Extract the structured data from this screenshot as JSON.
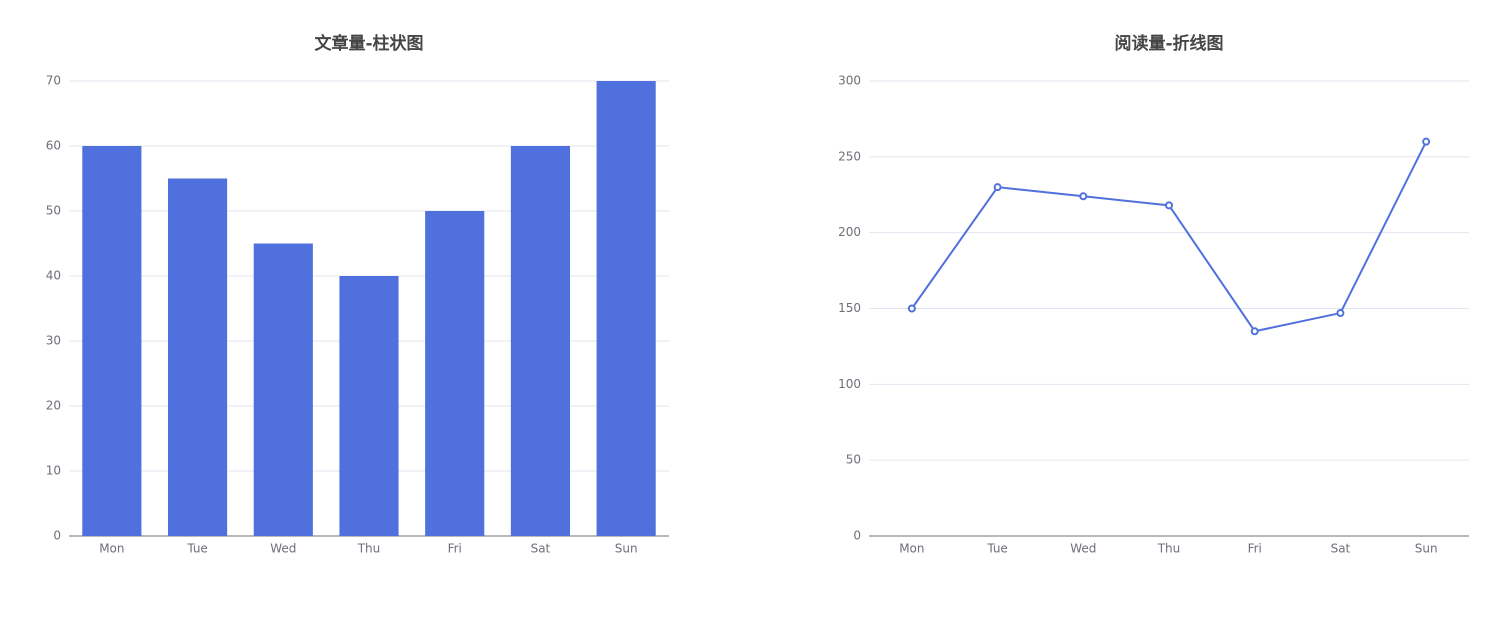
{
  "chart_data": [
    {
      "type": "bar",
      "title": "文章量-柱状图",
      "categories": [
        "Mon",
        "Tue",
        "Wed",
        "Thu",
        "Fri",
        "Sat",
        "Sun"
      ],
      "values": [
        60,
        55,
        45,
        40,
        50,
        60,
        70
      ],
      "color": "#5070dd",
      "ylim": [
        0,
        70
      ],
      "yticks": [
        0,
        10,
        20,
        30,
        40,
        50,
        60,
        70
      ],
      "grid": true
    },
    {
      "type": "line",
      "title": "阅读量-折线图",
      "categories": [
        "Mon",
        "Tue",
        "Wed",
        "Thu",
        "Fri",
        "Sat",
        "Sun"
      ],
      "values": [
        150,
        230,
        224,
        218,
        135,
        147,
        260
      ],
      "color": "#5070dd",
      "ylim": [
        0,
        300
      ],
      "yticks": [
        0,
        50,
        100,
        150,
        200,
        250,
        300
      ],
      "grid": true
    }
  ]
}
